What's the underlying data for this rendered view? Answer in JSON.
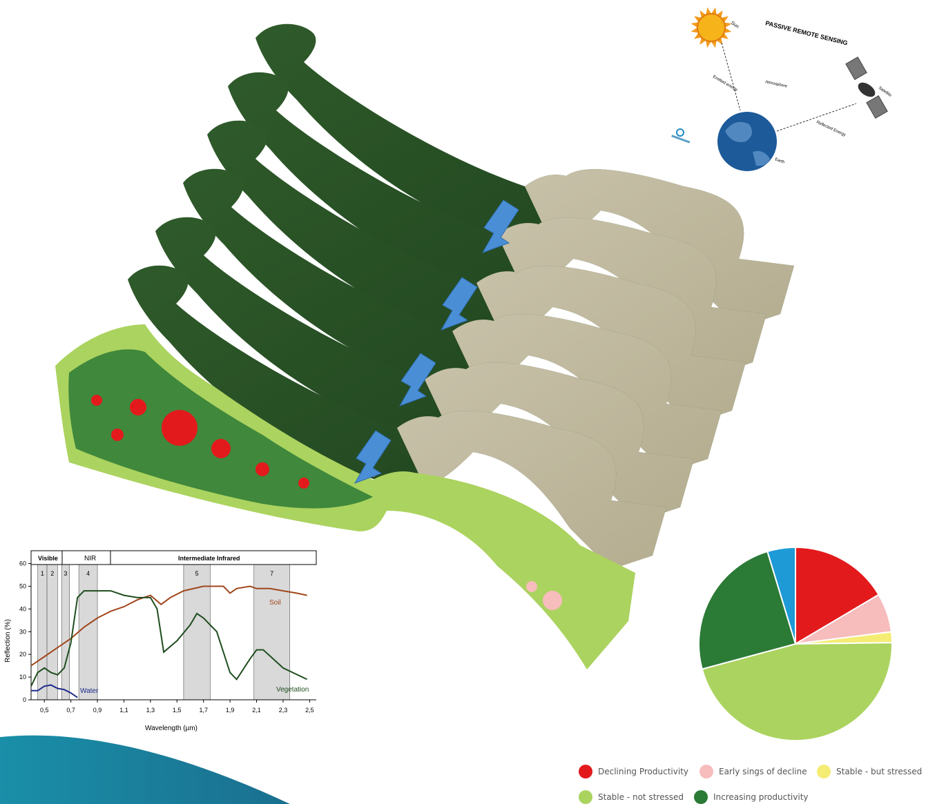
{
  "remote_sensing": {
    "title": "PASSIVE REMOTE SENSING",
    "sun": "Sun",
    "emitted": "Emitted energy",
    "atmosphere": "Atmosphere",
    "reflected": "Reflected Energy",
    "satellite": "Satellite",
    "earth": "Earth"
  },
  "spectrum": {
    "ylabel": "Reflection (%)",
    "xlabel": "Wavelength (µm)",
    "band_header": [
      "Visible",
      "NIR",
      "Intermediate Infrared"
    ],
    "band_numbers": [
      "1",
      "2",
      "3",
      "4",
      "5",
      "7"
    ],
    "yticks": [
      "0",
      "10",
      "20",
      "30",
      "40",
      "50",
      "60"
    ],
    "xticks": [
      "0,5",
      "0,7",
      "0,9",
      "1,1",
      "1,3",
      "1,5",
      "1,7",
      "1,9",
      "2,1",
      "2,3",
      "2,5"
    ],
    "series_labels": {
      "soil": "Soil",
      "water": "Water",
      "vegetation": "Vegetation"
    },
    "colors": {
      "soil": "#a0461c",
      "water": "#1c2a8c",
      "vegetation": "#1e4d1e",
      "band": "#d9d9d9"
    }
  },
  "pie": {
    "colors": [
      "#e31a1c",
      "#f7bcbc",
      "#f5ec74",
      "#abd35f",
      "#2b7a36",
      "#1e9ad6"
    ],
    "values": [
      16.5,
      6.5,
      1.8,
      46,
      24.5,
      4.7
    ]
  },
  "legend": {
    "items": [
      {
        "label": "Declining Productivity",
        "color": "#e31a1c"
      },
      {
        "label": "Early sings of decline",
        "color": "#f7bcbc"
      },
      {
        "label": "Stable - but stressed",
        "color": "#f5ec74"
      },
      {
        "label": "Stable - not stressed",
        "color": "#abd35f"
      },
      {
        "label": "Increasing productivity",
        "color": "#2b7a36"
      }
    ]
  }
}
